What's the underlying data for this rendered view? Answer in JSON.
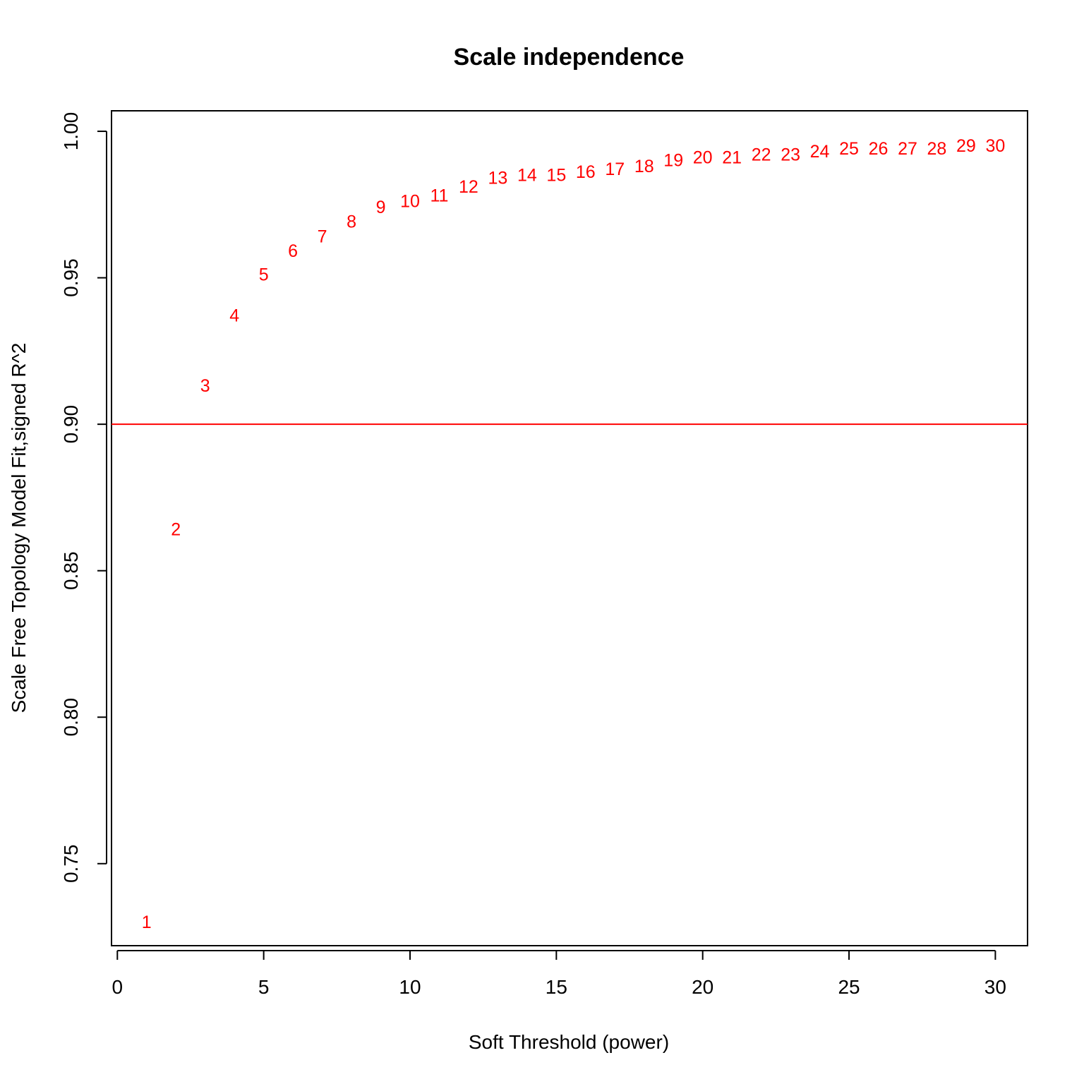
{
  "chart_data": {
    "type": "scatter",
    "title": "Scale independence",
    "xlabel": "Soft Threshold (power)",
    "ylabel": "Scale Free Topology Model Fit,signed R^2",
    "xlim": [
      -0.2,
      31.1
    ],
    "ylim": [
      0.722,
      1.007
    ],
    "x_ticks": [
      0,
      5,
      10,
      15,
      20,
      25,
      30
    ],
    "x_tick_labels": [
      "0",
      "5",
      "10",
      "15",
      "20",
      "25",
      "30"
    ],
    "y_ticks": [
      0.75,
      0.8,
      0.85,
      0.9,
      0.95,
      1.0
    ],
    "y_tick_labels": [
      "0.75",
      "0.80",
      "0.85",
      "0.90",
      "0.95",
      "1.00"
    ],
    "grid": false,
    "marker_color": "#ff0000",
    "reference_line": {
      "y": 0.9,
      "color": "#ff0000"
    },
    "points": [
      {
        "x": 1,
        "y": 0.73,
        "label": "1"
      },
      {
        "x": 2,
        "y": 0.864,
        "label": "2"
      },
      {
        "x": 3,
        "y": 0.913,
        "label": "3"
      },
      {
        "x": 4,
        "y": 0.937,
        "label": "4"
      },
      {
        "x": 5,
        "y": 0.951,
        "label": "5"
      },
      {
        "x": 6,
        "y": 0.959,
        "label": "6"
      },
      {
        "x": 7,
        "y": 0.964,
        "label": "7"
      },
      {
        "x": 8,
        "y": 0.969,
        "label": "8"
      },
      {
        "x": 9,
        "y": 0.974,
        "label": "9"
      },
      {
        "x": 10,
        "y": 0.976,
        "label": "10"
      },
      {
        "x": 11,
        "y": 0.978,
        "label": "11"
      },
      {
        "x": 12,
        "y": 0.981,
        "label": "12"
      },
      {
        "x": 13,
        "y": 0.984,
        "label": "13"
      },
      {
        "x": 14,
        "y": 0.985,
        "label": "14"
      },
      {
        "x": 15,
        "y": 0.985,
        "label": "15"
      },
      {
        "x": 16,
        "y": 0.986,
        "label": "16"
      },
      {
        "x": 17,
        "y": 0.987,
        "label": "17"
      },
      {
        "x": 18,
        "y": 0.988,
        "label": "18"
      },
      {
        "x": 19,
        "y": 0.99,
        "label": "19"
      },
      {
        "x": 20,
        "y": 0.991,
        "label": "20"
      },
      {
        "x": 21,
        "y": 0.991,
        "label": "21"
      },
      {
        "x": 22,
        "y": 0.992,
        "label": "22"
      },
      {
        "x": 23,
        "y": 0.992,
        "label": "23"
      },
      {
        "x": 24,
        "y": 0.993,
        "label": "24"
      },
      {
        "x": 25,
        "y": 0.994,
        "label": "25"
      },
      {
        "x": 26,
        "y": 0.994,
        "label": "26"
      },
      {
        "x": 27,
        "y": 0.994,
        "label": "27"
      },
      {
        "x": 28,
        "y": 0.994,
        "label": "28"
      },
      {
        "x": 29,
        "y": 0.995,
        "label": "29"
      },
      {
        "x": 30,
        "y": 0.995,
        "label": "30"
      }
    ]
  }
}
